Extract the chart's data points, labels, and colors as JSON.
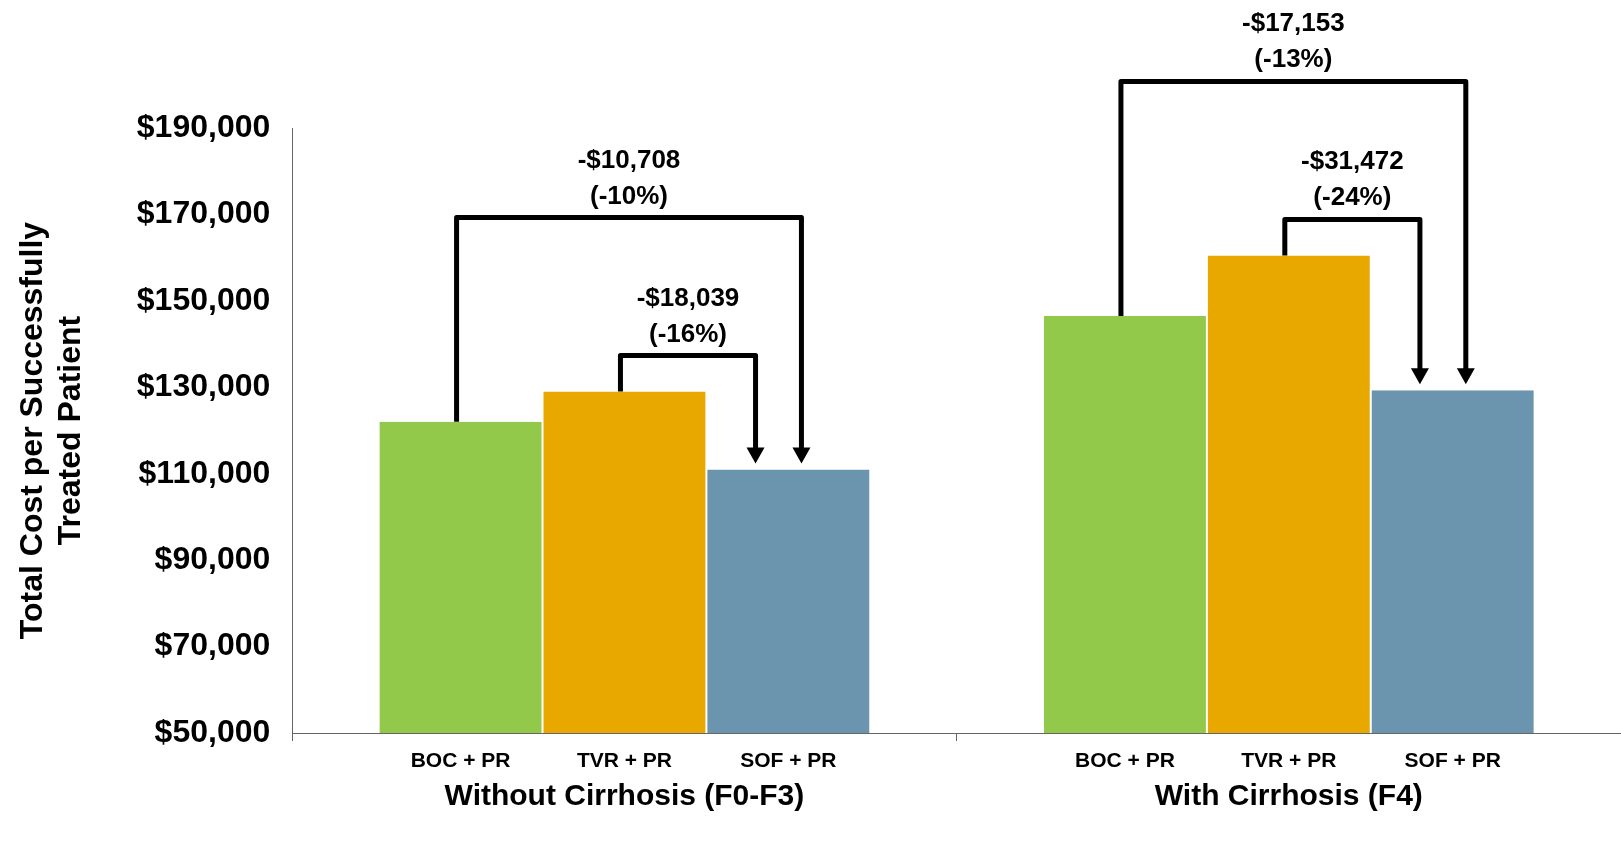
{
  "chart_data": {
    "type": "bar",
    "categories": [
      "Without Cirrhosis (F0-F3)",
      "With Cirrhosis (F4)"
    ],
    "series": [
      {
        "name": "BOC + PR",
        "color": "#92c94a",
        "values": [
          122000,
          146500
        ]
      },
      {
        "name": "TVR + PR",
        "color": "#e8a800",
        "values": [
          129000,
          160500
        ]
      },
      {
        "name": "SOF + PR",
        "color": "#6b95ae",
        "values": [
          111000,
          129300
        ]
      }
    ],
    "ylabel": "Total Cost per Successfully\nTreated Patient",
    "ylim": [
      50000,
      190000
    ],
    "yticks": [
      {
        "value": 50000,
        "label": "$50,000"
      },
      {
        "value": 70000,
        "label": "$70,000"
      },
      {
        "value": 90000,
        "label": "$90,000"
      },
      {
        "value": 110000,
        "label": "$110,000"
      },
      {
        "value": 130000,
        "label": "$130,000"
      },
      {
        "value": 150000,
        "label": "$150,000"
      },
      {
        "value": 170000,
        "label": "$170,000"
      },
      {
        "value": 190000,
        "label": "$190,000"
      }
    ],
    "annotations": [
      "-$10,708\n(-10%)",
      "-$18,039\n(-16%)",
      "-$17,153\n(-13%)",
      "-$31,472\n(-24%)"
    ],
    "grid": false,
    "legend": false
  }
}
